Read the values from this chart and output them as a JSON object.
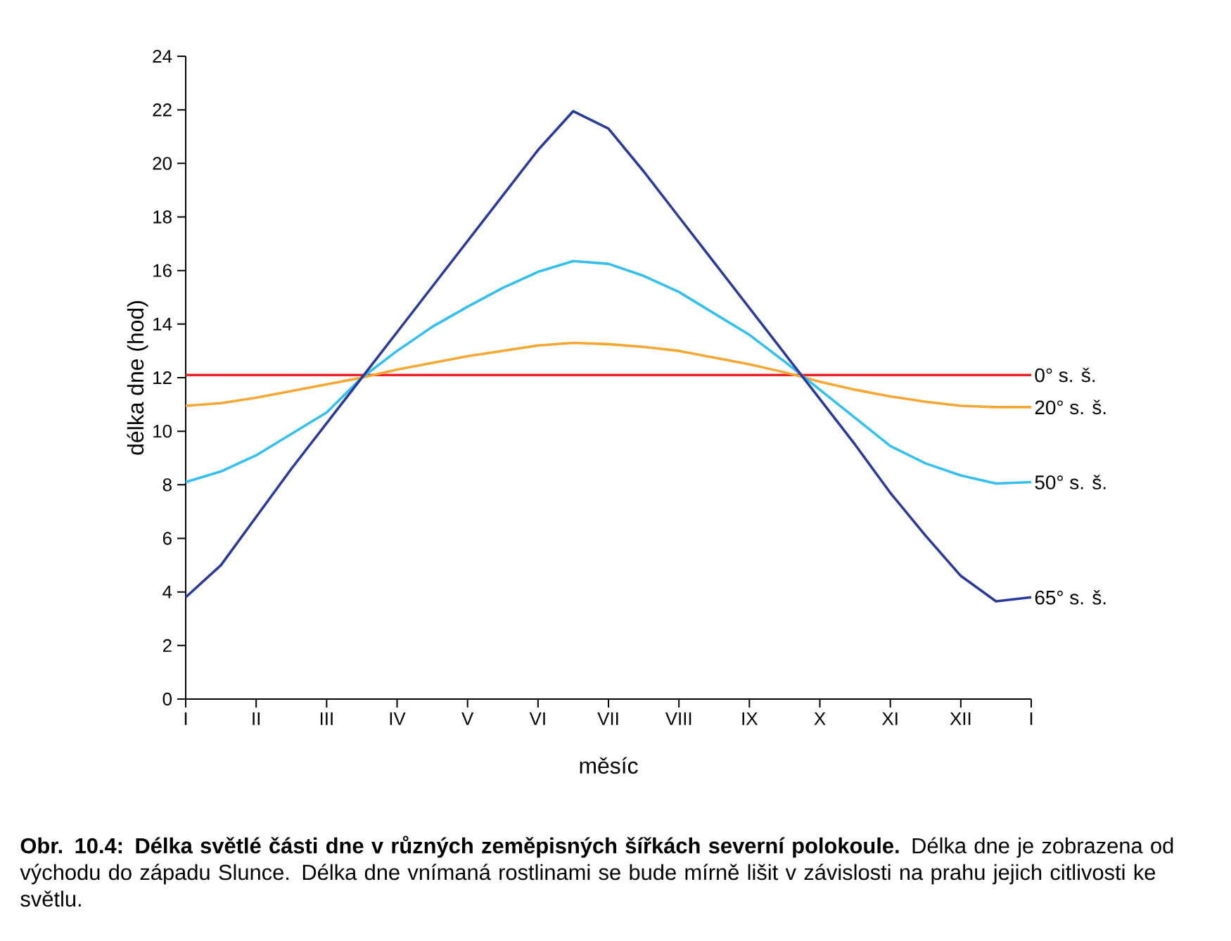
{
  "chart_data": {
    "type": "line",
    "xlabel": "měsíc",
    "ylabel": "délka dne (hod)",
    "categories": [
      "I",
      null,
      "II",
      null,
      "III",
      null,
      "IV",
      null,
      "V",
      null,
      "VI",
      null,
      "VII",
      null,
      "VIII",
      null,
      "IX",
      null,
      "X",
      null,
      "XI",
      null,
      "XII",
      null,
      "I"
    ],
    "ylim": [
      0,
      24
    ],
    "yticks": [
      0,
      2,
      4,
      6,
      8,
      10,
      12,
      14,
      16,
      18,
      20,
      22,
      24
    ],
    "series": [
      {
        "name": "0° s. š.",
        "color": "#ee2222",
        "values": [
          12.1,
          12.1,
          12.1,
          12.1,
          12.1,
          12.1,
          12.1,
          12.1,
          12.1,
          12.1,
          12.1,
          12.1,
          12.1,
          12.1,
          12.1,
          12.1,
          12.1,
          12.1,
          12.1,
          12.1,
          12.1,
          12.1,
          12.1,
          12.1,
          12.1
        ]
      },
      {
        "name": "20° s. š.",
        "color": "#f5a733",
        "values": [
          10.95,
          11.05,
          11.25,
          11.5,
          11.75,
          12,
          12.3,
          12.55,
          12.8,
          13.0,
          13.2,
          13.3,
          13.25,
          13.15,
          13.0,
          12.75,
          12.5,
          12.2,
          11.85,
          11.55,
          11.3,
          11.1,
          10.95,
          10.9,
          10.9
        ]
      },
      {
        "name": "50° s. š.",
        "color": "#33c0ee",
        "values": [
          8.1,
          8.5,
          9.1,
          9.9,
          10.7,
          12,
          13.0,
          13.9,
          14.65,
          15.35,
          15.95,
          16.35,
          16.25,
          15.8,
          15.2,
          14.4,
          13.6,
          12.6,
          11.55,
          10.5,
          9.45,
          8.8,
          8.35,
          8.05,
          8.1
        ]
      },
      {
        "name": "65° s. š.",
        "color": "#2b3a9a",
        "values": [
          3.8,
          5.0,
          6.8,
          8.6,
          10.3,
          12,
          13.7,
          15.4,
          17.1,
          18.8,
          20.5,
          21.95,
          21.3,
          19.7,
          18.0,
          16.3,
          14.6,
          12.9,
          11.2,
          9.5,
          7.7,
          6.1,
          4.6,
          3.65,
          3.8
        ]
      }
    ],
    "legend": false,
    "annotations": [
      "**Obr. 10.4: Délka světlé části dne v různých zeměpisných šířkách severní polokoule.** Délka dne je zobrazena od východu do západu Slunce. Délka dne vnímaná rostlinami se bude mírně lišit v závislosti na prahu jejich citlivosti ke světlu."
    ]
  }
}
